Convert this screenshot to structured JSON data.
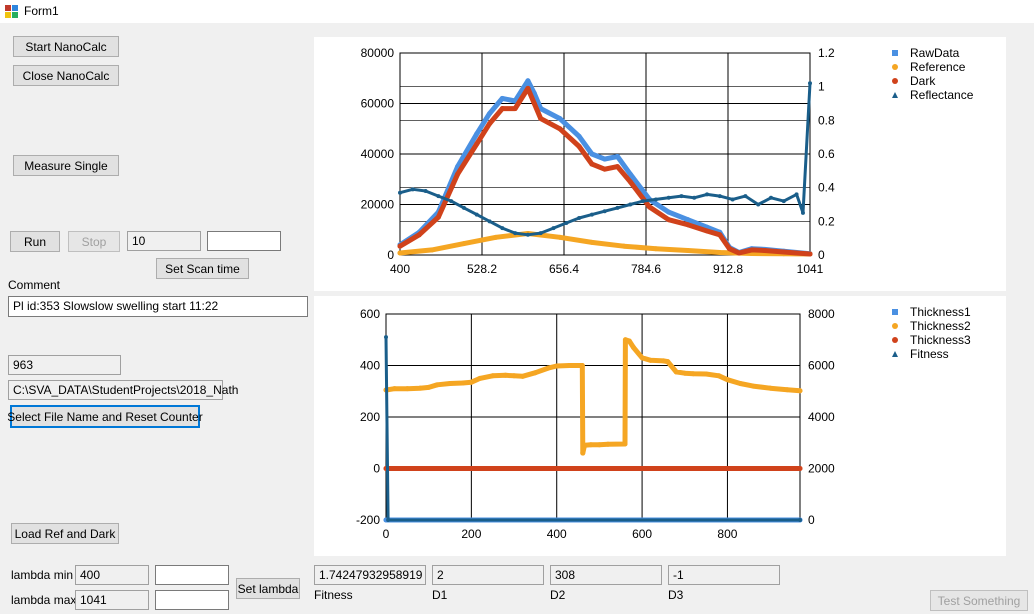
{
  "window": {
    "title": "Form1"
  },
  "buttons": {
    "start": "Start NanoCalc",
    "close": "Close NanoCalc",
    "measure": "Measure Single",
    "run": "Run",
    "stop": "Stop",
    "set_scan": "Set Scan time",
    "select_file": "Select File Name and Reset Counter",
    "load_ref": "Load Ref and Dark",
    "set_lambda": "Set lambda",
    "test": "Test Something"
  },
  "fields": {
    "scan_value": "10",
    "scan_extra": "",
    "comment_label": "Comment",
    "comment": "Pl id:353 Slowslow swelling start 11:22",
    "counter": "963",
    "path": "C:\\SVA_DATA\\StudentProjects\\2018_Nath",
    "lambda_min_label": "lambda min",
    "lambda_min": "400",
    "lambda_min_input": "",
    "lambda_max_label": "lambda max",
    "lambda_max": "1041",
    "lambda_max_input": "",
    "fitness": "1.74247932958919",
    "fitness_label": "Fitness",
    "d1": "2",
    "d1_label": "D1",
    "d2": "308",
    "d2_label": "D2",
    "d3": "-1",
    "d3_label": "D3"
  },
  "chart_data": [
    {
      "type": "scatter",
      "title": "",
      "x_ticks": [
        "400",
        "528.2",
        "656.4",
        "784.6",
        "912.8",
        "1041"
      ],
      "y_ticks": [
        "0",
        "20000",
        "40000",
        "60000",
        "80000"
      ],
      "y2_ticks": [
        "0",
        "0.2",
        "0.4",
        "0.6",
        "0.8",
        "1",
        "1.2"
      ],
      "xlim": [
        400,
        1041
      ],
      "ylim": [
        0,
        80000
      ],
      "y2lim": [
        0,
        1.2
      ],
      "legend_position": "right",
      "series": [
        {
          "name": "RawData",
          "color": "#4a90e2",
          "axis": "left",
          "x": [
            400,
            430,
            460,
            490,
            520,
            540,
            560,
            580,
            600,
            610,
            620,
            650,
            680,
            700,
            720,
            740,
            760,
            790,
            820,
            850,
            880,
            900,
            915,
            930,
            950,
            970,
            1000,
            1041
          ],
          "y": [
            4000,
            9000,
            17000,
            35000,
            48000,
            56000,
            62000,
            61000,
            69000,
            64000,
            58000,
            54000,
            47000,
            40000,
            38000,
            39000,
            32000,
            22000,
            17000,
            14000,
            11000,
            9000,
            3000,
            1000,
            2500,
            2200,
            1500,
            500
          ]
        },
        {
          "name": "Reference",
          "color": "#f5a623",
          "axis": "left",
          "x": [
            400,
            450,
            500,
            550,
            600,
            650,
            700,
            750,
            800,
            850,
            900,
            950,
            1000,
            1041
          ],
          "y": [
            800,
            2000,
            4500,
            7000,
            8500,
            7000,
            5000,
            3500,
            2500,
            1800,
            1000,
            600,
            500,
            400
          ]
        },
        {
          "name": "Dark",
          "color": "#d0421b",
          "axis": "left",
          "x": [
            400,
            430,
            460,
            490,
            520,
            540,
            560,
            580,
            600,
            610,
            620,
            650,
            680,
            700,
            720,
            740,
            760,
            790,
            820,
            850,
            880,
            900,
            915,
            930,
            950,
            970,
            1000,
            1041
          ],
          "y": [
            3500,
            8000,
            15000,
            32000,
            44000,
            52000,
            58000,
            58000,
            66000,
            60000,
            54000,
            50000,
            43000,
            36000,
            34000,
            35000,
            29000,
            19000,
            14000,
            12000,
            9500,
            8000,
            2500,
            800,
            2000,
            1800,
            1200,
            400
          ]
        },
        {
          "name": "Reflectance",
          "color": "#1a5e8a",
          "axis": "right",
          "x": [
            400,
            420,
            440,
            460,
            480,
            500,
            520,
            540,
            560,
            580,
            600,
            620,
            640,
            660,
            680,
            700,
            720,
            740,
            760,
            780,
            800,
            820,
            840,
            860,
            880,
            900,
            920,
            940,
            960,
            980,
            1000,
            1020,
            1030,
            1041
          ],
          "y": [
            0.37,
            0.39,
            0.38,
            0.35,
            0.32,
            0.28,
            0.24,
            0.2,
            0.16,
            0.13,
            0.12,
            0.13,
            0.16,
            0.19,
            0.22,
            0.24,
            0.26,
            0.28,
            0.3,
            0.32,
            0.33,
            0.34,
            0.35,
            0.34,
            0.36,
            0.35,
            0.33,
            0.35,
            0.3,
            0.34,
            0.32,
            0.36,
            0.25,
            1.02
          ]
        }
      ]
    },
    {
      "type": "scatter",
      "title": "",
      "x_ticks": [
        "0",
        "200",
        "400",
        "600",
        "800"
      ],
      "y_ticks": [
        "-200",
        "0",
        "200",
        "400",
        "600"
      ],
      "y2_ticks": [
        "0",
        "2000",
        "4000",
        "6000",
        "8000"
      ],
      "xlim": [
        0,
        970
      ],
      "ylim": [
        -200,
        600
      ],
      "y2lim": [
        0,
        8000
      ],
      "legend_position": "right",
      "series": [
        {
          "name": "Thickness1",
          "color": "#4a90e2",
          "axis": "left",
          "x": [
            0,
            970
          ],
          "y": [
            -200,
            -200
          ]
        },
        {
          "name": "Thickness2",
          "color": "#f5a623",
          "axis": "left",
          "x": [
            0,
            20,
            50,
            80,
            100,
            120,
            150,
            180,
            200,
            220,
            250,
            280,
            300,
            320,
            350,
            380,
            400,
            430,
            460,
            461,
            465,
            480,
            500,
            520,
            560,
            561,
            570,
            580,
            600,
            620,
            650,
            660,
            680,
            700,
            720,
            750,
            780,
            800,
            830,
            860,
            900,
            940,
            970
          ],
          "y": [
            305,
            310,
            310,
            312,
            315,
            325,
            330,
            332,
            335,
            350,
            360,
            362,
            360,
            358,
            372,
            390,
            398,
            400,
            400,
            60,
            90,
            92,
            92,
            94,
            95,
            500,
            495,
            470,
            430,
            420,
            418,
            415,
            375,
            370,
            368,
            367,
            360,
            345,
            330,
            320,
            312,
            306,
            302
          ]
        },
        {
          "name": "Thickness3",
          "color": "#d0421b",
          "axis": "left",
          "x": [
            0,
            970
          ],
          "y": [
            0,
            0
          ]
        },
        {
          "name": "Fitness",
          "color": "#1a5e8a",
          "axis": "right",
          "x": [
            0,
            5,
            970
          ],
          "y": [
            7100,
            0,
            0
          ]
        }
      ]
    }
  ]
}
